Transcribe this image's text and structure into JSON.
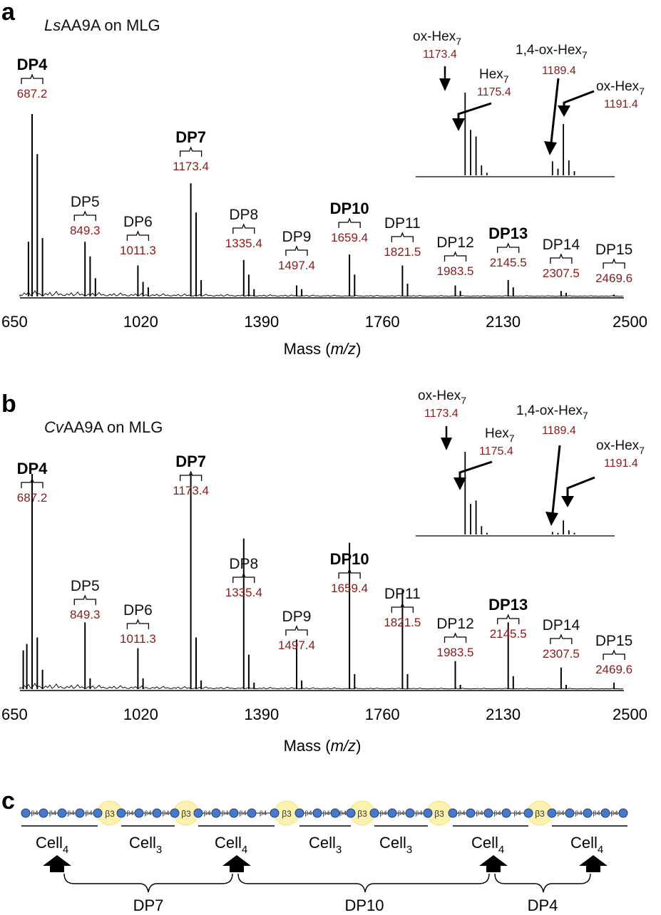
{
  "panel_a": {
    "letter": "a",
    "title_italic": "Ls",
    "title_rest": "AA9A on MLG",
    "xlabel_prefix": "Mass (",
    "xlabel_italic": "m/z",
    "xlabel_suffix": ")",
    "inset": {
      "ox7_name": "ox-Hex",
      "ox7_mass": "1173.4",
      "hex7_name": "Hex",
      "hex7_mass": "1175.4",
      "ox14_name": "1,4-ox-Hex",
      "ox14_mass": "1189.4",
      "ox7b_name": "ox-Hex",
      "ox7b_mass": "1191.4",
      "subscript": "7"
    }
  },
  "panel_b": {
    "letter": "b",
    "title_italic": "Cv",
    "title_rest": "AA9A on MLG",
    "xlabel_prefix": "Mass (",
    "xlabel_italic": "m/z",
    "xlabel_suffix": ")",
    "inset": {
      "ox7_name": "ox-Hex",
      "ox7_mass": "1173.4",
      "hex7_name": "Hex",
      "hex7_mass": "1175.4",
      "ox14_name": "1,4-ox-Hex",
      "ox14_mass": "1189.4",
      "ox7b_name": "ox-Hex",
      "ox7b_mass": "1191.4",
      "subscript": "7"
    }
  },
  "panel_c": {
    "letter": "c",
    "bond_b4": "β4",
    "bond_b3": "β3",
    "cell_prefix": "Cell",
    "cells": [
      {
        "sub": "4"
      },
      {
        "sub": "3"
      },
      {
        "sub": "4"
      },
      {
        "sub": "3"
      },
      {
        "sub": "3"
      },
      {
        "sub": "4"
      },
      {
        "sub": "4"
      }
    ],
    "products": [
      {
        "label": "DP7"
      },
      {
        "label": "DP10"
      },
      {
        "label": "DP4"
      }
    ]
  },
  "chart_data": [
    {
      "type": "line",
      "title": "LsAA9A on MLG",
      "xlabel": "Mass (m/z)",
      "ylabel": "",
      "xlim": [
        650,
        2500
      ],
      "ylim": [
        0,
        1
      ],
      "xticks": [
        650,
        1020,
        1390,
        1760,
        2130,
        2500
      ],
      "series": [
        {
          "name": "peaks",
          "points": [
            [
              676,
              0.3
            ],
            [
              687.2,
              1.0
            ],
            [
              703,
              0.78
            ],
            [
              719,
              0.32
            ],
            [
              849.3,
              0.3
            ],
            [
              865,
              0.22
            ],
            [
              881,
              0.1
            ],
            [
              1011.3,
              0.17
            ],
            [
              1027,
              0.08
            ],
            [
              1043,
              0.05
            ],
            [
              1173.4,
              0.62
            ],
            [
              1189.4,
              0.46
            ],
            [
              1205,
              0.09
            ],
            [
              1335.4,
              0.2
            ],
            [
              1351,
              0.12
            ],
            [
              1367,
              0.04
            ],
            [
              1497.4,
              0.06
            ],
            [
              1513,
              0.04
            ],
            [
              1659.4,
              0.23
            ],
            [
              1675,
              0.12
            ],
            [
              1821.5,
              0.17
            ],
            [
              1837,
              0.07
            ],
            [
              1983.5,
              0.06
            ],
            [
              1999,
              0.03
            ],
            [
              2145.5,
              0.09
            ],
            [
              2161,
              0.05
            ],
            [
              2307.5,
              0.03
            ],
            [
              2323,
              0.02
            ],
            [
              2469.6,
              0.01
            ]
          ]
        }
      ],
      "annotations": [
        {
          "label": "DP4",
          "mass": "687.2",
          "x": 687.2,
          "bold": true
        },
        {
          "label": "DP5",
          "mass": "849.3",
          "x": 849.3,
          "bold": false
        },
        {
          "label": "DP6",
          "mass": "1011.3",
          "x": 1011.3,
          "bold": false
        },
        {
          "label": "DP7",
          "mass": "1173.4",
          "x": 1173.4,
          "bold": true
        },
        {
          "label": "DP8",
          "mass": "1335.4",
          "x": 1335.4,
          "bold": false
        },
        {
          "label": "DP9",
          "mass": "1497.4",
          "x": 1497.4,
          "bold": false
        },
        {
          "label": "DP10",
          "mass": "1659.4",
          "x": 1659.4,
          "bold": true
        },
        {
          "label": "DP11",
          "mass": "1821.5",
          "x": 1821.5,
          "bold": false
        },
        {
          "label": "DP12",
          "mass": "1983.5",
          "x": 1983.5,
          "bold": false
        },
        {
          "label": "DP13",
          "mass": "2145.5",
          "x": 2145.5,
          "bold": true
        },
        {
          "label": "DP14",
          "mass": "2307.5",
          "x": 2307.5,
          "bold": false
        },
        {
          "label": "DP15",
          "mass": "2469.6",
          "x": 2469.6,
          "bold": false
        }
      ],
      "inset": {
        "xlim": [
          1165,
          1200
        ],
        "peaks": [
          [
            1173.4,
            1.0
          ],
          [
            1174.4,
            0.55
          ],
          [
            1175.4,
            0.47
          ],
          [
            1176.4,
            0.12
          ],
          [
            1177.4,
            0.03
          ],
          [
            1189.4,
            0.17
          ],
          [
            1190.4,
            0.08
          ],
          [
            1191.4,
            0.62
          ],
          [
            1192.4,
            0.18
          ],
          [
            1193.4,
            0.05
          ]
        ]
      }
    },
    {
      "type": "line",
      "title": "CvAA9A on MLG",
      "xlabel": "Mass (m/z)",
      "ylabel": "",
      "xlim": [
        650,
        2500
      ],
      "ylim": [
        0,
        1
      ],
      "xticks": [
        650,
        1020,
        1390,
        1760,
        2130,
        2500
      ],
      "series": [
        {
          "name": "peaks",
          "points": [
            [
              660,
              0.18
            ],
            [
              671,
              0.21
            ],
            [
              687.2,
              1.0
            ],
            [
              703,
              0.24
            ],
            [
              719,
              0.09
            ],
            [
              849.3,
              0.31
            ],
            [
              865,
              0.05
            ],
            [
              1011.3,
              0.19
            ],
            [
              1027,
              0.05
            ],
            [
              1173.4,
              1.0
            ],
            [
              1189.4,
              0.24
            ],
            [
              1205,
              0.04
            ],
            [
              1335.4,
              0.7
            ],
            [
              1351,
              0.16
            ],
            [
              1367,
              0.03
            ],
            [
              1497.4,
              0.23
            ],
            [
              1513,
              0.04
            ],
            [
              1659.4,
              0.68
            ],
            [
              1675,
              0.07
            ],
            [
              1821.5,
              0.46
            ],
            [
              1837,
              0.07
            ],
            [
              1983.5,
              0.13
            ],
            [
              1999,
              0.02
            ],
            [
              2145.5,
              0.31
            ],
            [
              2161,
              0.06
            ],
            [
              2307.5,
              0.1
            ],
            [
              2323,
              0.02
            ],
            [
              2469.6,
              0.03
            ]
          ]
        }
      ],
      "annotations": [
        {
          "label": "DP4",
          "mass": "687.2",
          "x": 687.2,
          "bold": true
        },
        {
          "label": "DP5",
          "mass": "849.3",
          "x": 849.3,
          "bold": false
        },
        {
          "label": "DP6",
          "mass": "1011.3",
          "x": 1011.3,
          "bold": false
        },
        {
          "label": "DP7",
          "mass": "1173.4",
          "x": 1173.4,
          "bold": true
        },
        {
          "label": "DP8",
          "mass": "1335.4",
          "x": 1335.4,
          "bold": false
        },
        {
          "label": "DP9",
          "mass": "1497.4",
          "x": 1497.4,
          "bold": false
        },
        {
          "label": "DP10",
          "mass": "1659.4",
          "x": 1659.4,
          "bold": true
        },
        {
          "label": "DP11",
          "mass": "1821.5",
          "x": 1821.5,
          "bold": false
        },
        {
          "label": "DP12",
          "mass": "1983.5",
          "x": 1983.5,
          "bold": false
        },
        {
          "label": "DP13",
          "mass": "2145.5",
          "x": 2145.5,
          "bold": true
        },
        {
          "label": "DP14",
          "mass": "2307.5",
          "x": 2307.5,
          "bold": false
        },
        {
          "label": "DP15",
          "mass": "2469.6",
          "x": 2469.6,
          "bold": false
        }
      ],
      "inset": {
        "xlim": [
          1165,
          1200
        ],
        "peaks": [
          [
            1173.4,
            1.0
          ],
          [
            1174.4,
            0.37
          ],
          [
            1175.4,
            0.41
          ],
          [
            1176.4,
            0.1
          ],
          [
            1177.4,
            0.02
          ],
          [
            1189.4,
            0.03
          ],
          [
            1190.4,
            0.02
          ],
          [
            1191.4,
            0.17
          ],
          [
            1192.4,
            0.05
          ],
          [
            1193.4,
            0.02
          ]
        ]
      }
    }
  ]
}
